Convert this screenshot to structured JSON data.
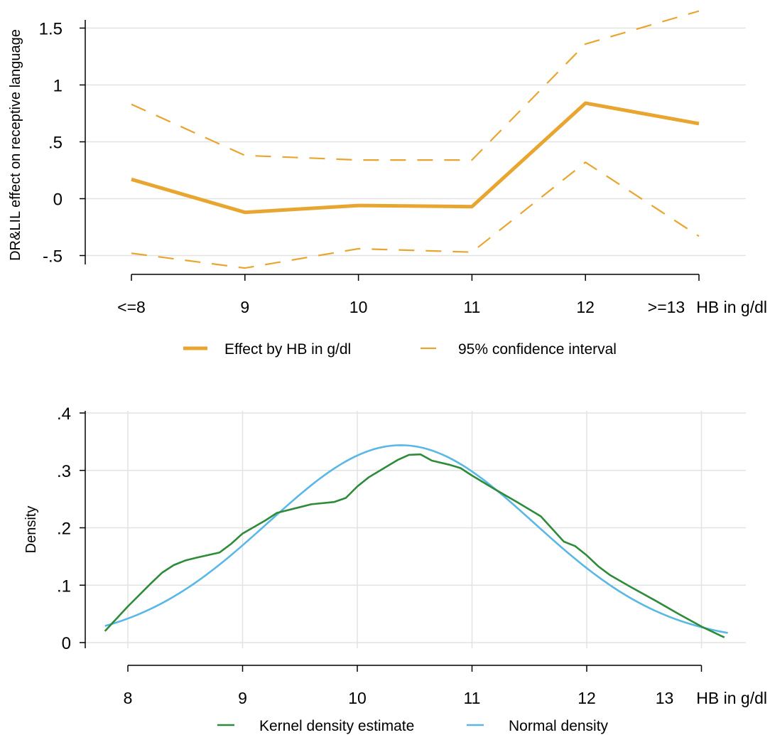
{
  "chart_data": [
    {
      "type": "line",
      "xlabel": "HB in g/dl",
      "ylabel": "DR&LIL effect on receptive language",
      "categories": [
        "<=8",
        "9",
        "10",
        "11",
        "12",
        ">=13"
      ],
      "ylim": [
        -0.5,
        1.5
      ],
      "yticks": [
        {
          "value": -0.5,
          "label": "-.5"
        },
        {
          "value": 0,
          "label": "0"
        },
        {
          "value": 0.5,
          "label": ".5"
        },
        {
          "value": 1,
          "label": "1"
        },
        {
          "value": 1.5,
          "label": "1.5"
        }
      ],
      "grid": true,
      "legend_position": "bottom",
      "series": [
        {
          "name": "Effect by HB in g/dl",
          "style": "solid",
          "color": "#E8A530",
          "values": [
            0.17,
            -0.12,
            -0.06,
            -0.07,
            0.84,
            0.66
          ]
        },
        {
          "name": "95% confidence interval",
          "style": "dashed",
          "color": "#E8A530",
          "values": [
            0.83,
            0.38,
            0.34,
            0.34,
            1.36,
            1.65
          ]
        },
        {
          "name": "95% confidence interval",
          "style": "dashed",
          "color": "#E8A530",
          "values": [
            -0.48,
            -0.61,
            -0.44,
            -0.47,
            0.32,
            -0.33
          ],
          "in_legend": false
        }
      ]
    },
    {
      "type": "line",
      "xlabel": "HB in g/dl",
      "ylabel": "Density",
      "xticks": [
        8,
        9,
        10,
        11,
        12,
        13
      ],
      "ylim": [
        0,
        0.4
      ],
      "yticks": [
        {
          "value": 0,
          "label": "0"
        },
        {
          "value": 0.1,
          "label": ".1"
        },
        {
          "value": 0.2,
          "label": ".2"
        },
        {
          "value": 0.3,
          "label": ".3"
        },
        {
          "value": 0.4,
          "label": ".4"
        }
      ],
      "grid": true,
      "legend_position": "bottom",
      "series": [
        {
          "name": "Kernel density estimate",
          "color": "#2E8B3A",
          "x": [
            7.8,
            8.0,
            8.2,
            8.3,
            8.4,
            8.5,
            8.6,
            8.8,
            8.9,
            9.0,
            9.2,
            9.3,
            9.5,
            9.6,
            9.8,
            9.9,
            10.0,
            10.1,
            10.2,
            10.35,
            10.45,
            10.55,
            10.65,
            10.8,
            10.9,
            11.0,
            11.2,
            11.4,
            11.6,
            11.8,
            11.9,
            12.0,
            12.1,
            12.2,
            12.4,
            12.6,
            12.8,
            13.0,
            13.2
          ],
          "y": [
            0.02,
            0.063,
            0.103,
            0.122,
            0.135,
            0.143,
            0.148,
            0.157,
            0.172,
            0.19,
            0.213,
            0.226,
            0.236,
            0.241,
            0.245,
            0.252,
            0.272,
            0.288,
            0.3,
            0.318,
            0.327,
            0.328,
            0.317,
            0.31,
            0.304,
            0.291,
            0.267,
            0.244,
            0.22,
            0.176,
            0.168,
            0.152,
            0.133,
            0.118,
            0.095,
            0.073,
            0.05,
            0.028,
            0.009
          ]
        },
        {
          "name": "Normal density",
          "color": "#5BB8E6",
          "mean": 10.38,
          "sd": 1.16,
          "xmin": 7.8,
          "xmax": 13.23
        }
      ]
    }
  ]
}
